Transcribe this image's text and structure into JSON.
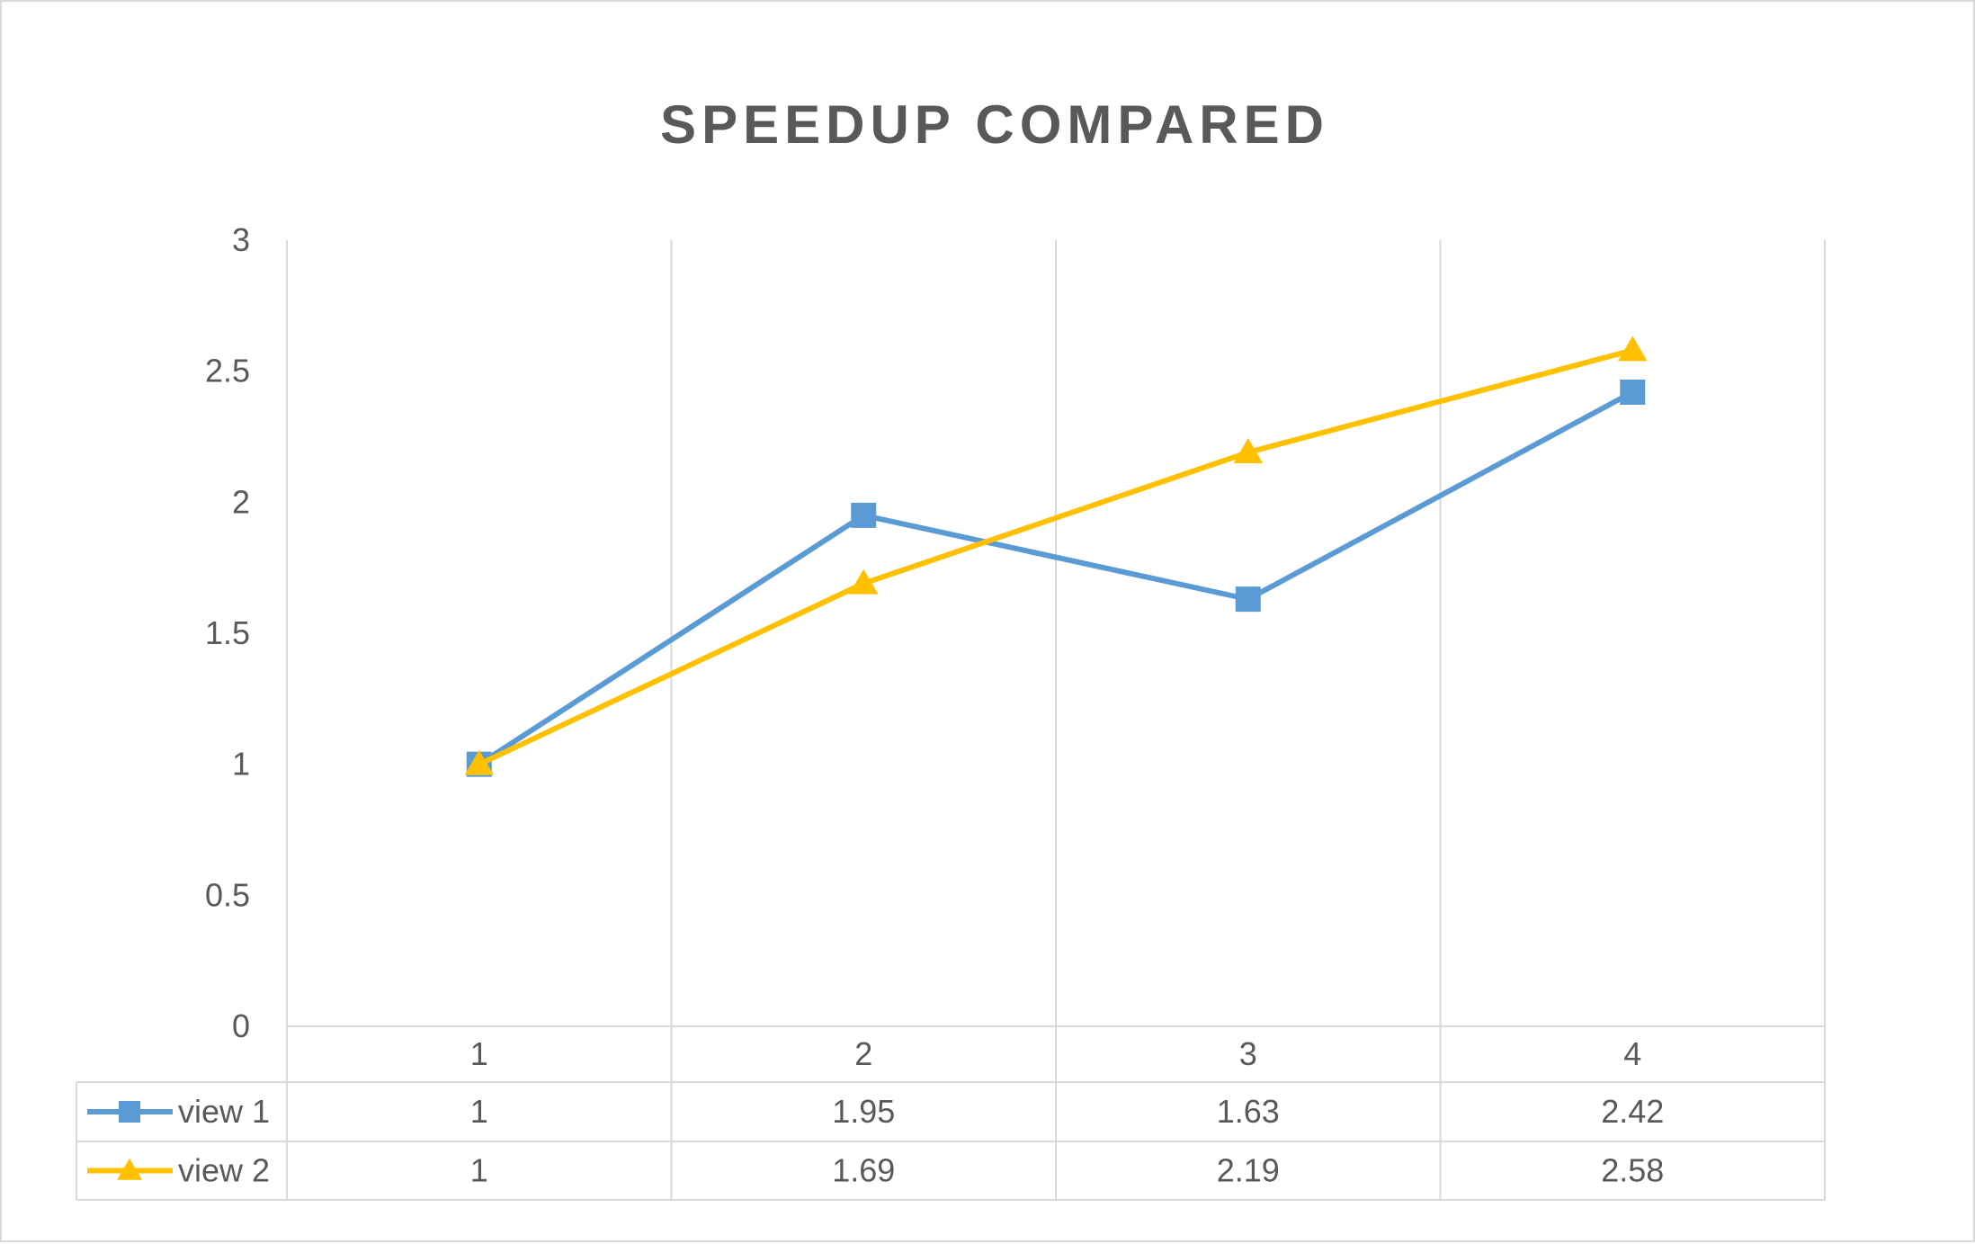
{
  "chart_data": {
    "type": "line",
    "title": "SPEEDUP COMPARED",
    "categories": [
      "1",
      "2",
      "3",
      "4"
    ],
    "ylim": [
      0,
      3
    ],
    "yticks": [
      0,
      0.5,
      1,
      1.5,
      2,
      2.5,
      3
    ],
    "ytick_labels": [
      "0",
      "0.5",
      "1",
      "1.5",
      "2",
      "2.5",
      "3"
    ],
    "grid": "vertical",
    "legend_placement": "data-table",
    "series": [
      {
        "name": "view 1",
        "values": [
          1,
          1.95,
          1.63,
          2.42
        ],
        "value_labels": [
          "1",
          "1.95",
          "1.63",
          "2.42"
        ],
        "color": "#5b9bd5",
        "marker": "square"
      },
      {
        "name": "view 2",
        "values": [
          1,
          1.69,
          2.19,
          2.58
        ],
        "value_labels": [
          "1",
          "1.69",
          "2.19",
          "2.58"
        ],
        "color": "#ffc000",
        "marker": "triangle"
      }
    ]
  }
}
